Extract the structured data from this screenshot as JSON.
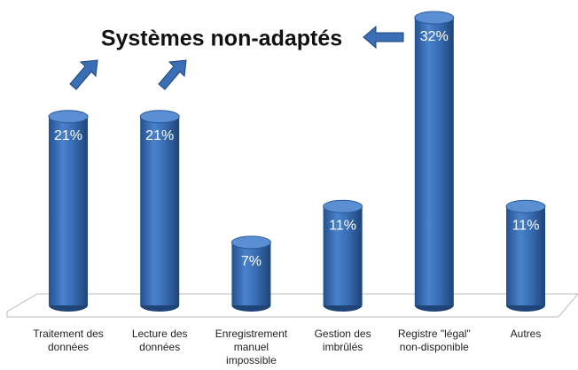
{
  "chart_data": {
    "type": "bar",
    "annotation": "Systèmes non-adaptés",
    "categories": [
      [
        "Traitement des",
        "données"
      ],
      [
        "Lecture des",
        "données"
      ],
      [
        "Enregistrement",
        "manuel",
        "impossible"
      ],
      [
        "Gestion des",
        "imbrûlés"
      ],
      [
        "Registre \"légal\"",
        "non-disponible"
      ],
      [
        "Autres"
      ]
    ],
    "values": [
      21,
      21,
      7,
      11,
      32,
      11
    ],
    "value_labels": [
      "21%",
      "21%",
      "7%",
      "11%",
      "32%",
      "11%"
    ],
    "color": "#3a6fb5"
  }
}
